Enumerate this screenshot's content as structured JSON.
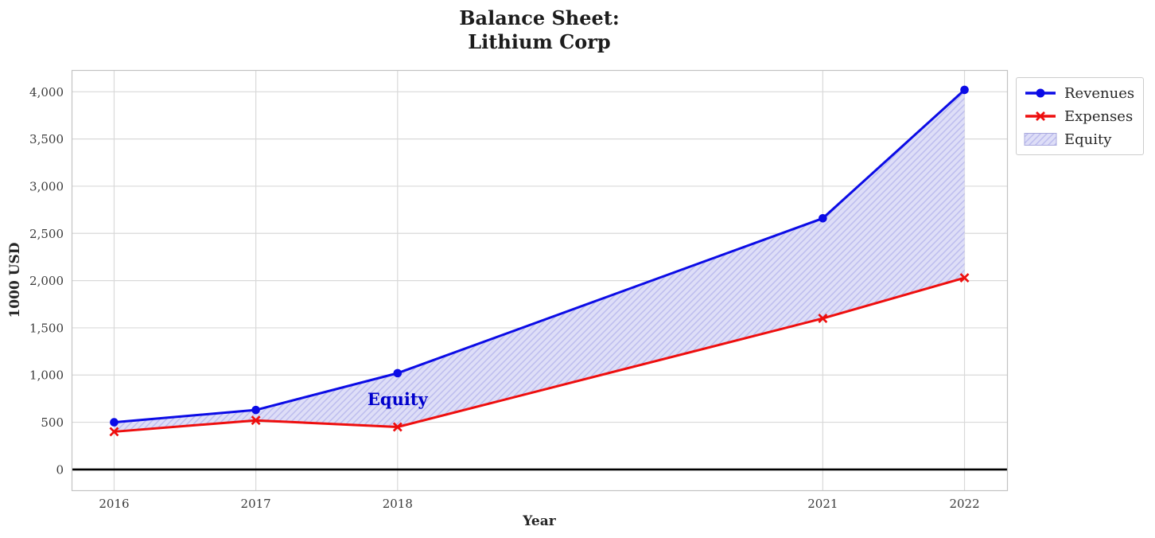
{
  "chart_data": {
    "type": "line",
    "title": "Balance Sheet:\nLithium Corp",
    "xlabel": "Year",
    "ylabel": "1000 USD",
    "x": [
      2016,
      2017,
      2018,
      2021,
      2022
    ],
    "xtick_labels": [
      "2016",
      "2017",
      "2018",
      "2021",
      "2022"
    ],
    "xlim": [
      2015.7,
      2022.3
    ],
    "ylim": [
      -220,
      4230
    ],
    "yticks": [
      0,
      500,
      1000,
      1500,
      2000,
      2500,
      3000,
      3500,
      4000
    ],
    "ytick_labels": [
      "0",
      "500",
      "1,000",
      "1,500",
      "2,000",
      "2,500",
      "3,000",
      "3,500",
      "4,000"
    ],
    "grid": true,
    "series": [
      {
        "name": "Revenues",
        "values": [
          500,
          630,
          1020,
          2660,
          4020
        ],
        "color": "#0b0be6",
        "marker": "circle"
      },
      {
        "name": "Expenses",
        "values": [
          400,
          520,
          450,
          1600,
          2030
        ],
        "color": "#ee0e0e",
        "marker": "x"
      }
    ],
    "fill_between": {
      "label": "Equity",
      "between": [
        "Revenues",
        "Expenses"
      ],
      "facecolor": "#dedef7",
      "hatchcolor": "#bcbcee",
      "edgecolor": "#a9a9dd",
      "hatch": "///"
    },
    "baseline": {
      "y": 0,
      "color": "#000000"
    },
    "annotation": {
      "text": "Equity",
      "x": 2018,
      "y": 740,
      "color": "#0000cc"
    },
    "legend": [
      {
        "label": "Revenues",
        "swatch": "line-circle",
        "color": "#0b0be6"
      },
      {
        "label": "Expenses",
        "swatch": "line-x",
        "color": "#ee0e0e"
      },
      {
        "label": "Equity",
        "swatch": "hatch-patch",
        "color": "#dedef7"
      }
    ],
    "legend_position": "outside-top-right",
    "colors": {
      "grid": "#d9d9d9",
      "spine": "#c3c3c3",
      "tick_text": "#3a3a3a"
    }
  }
}
